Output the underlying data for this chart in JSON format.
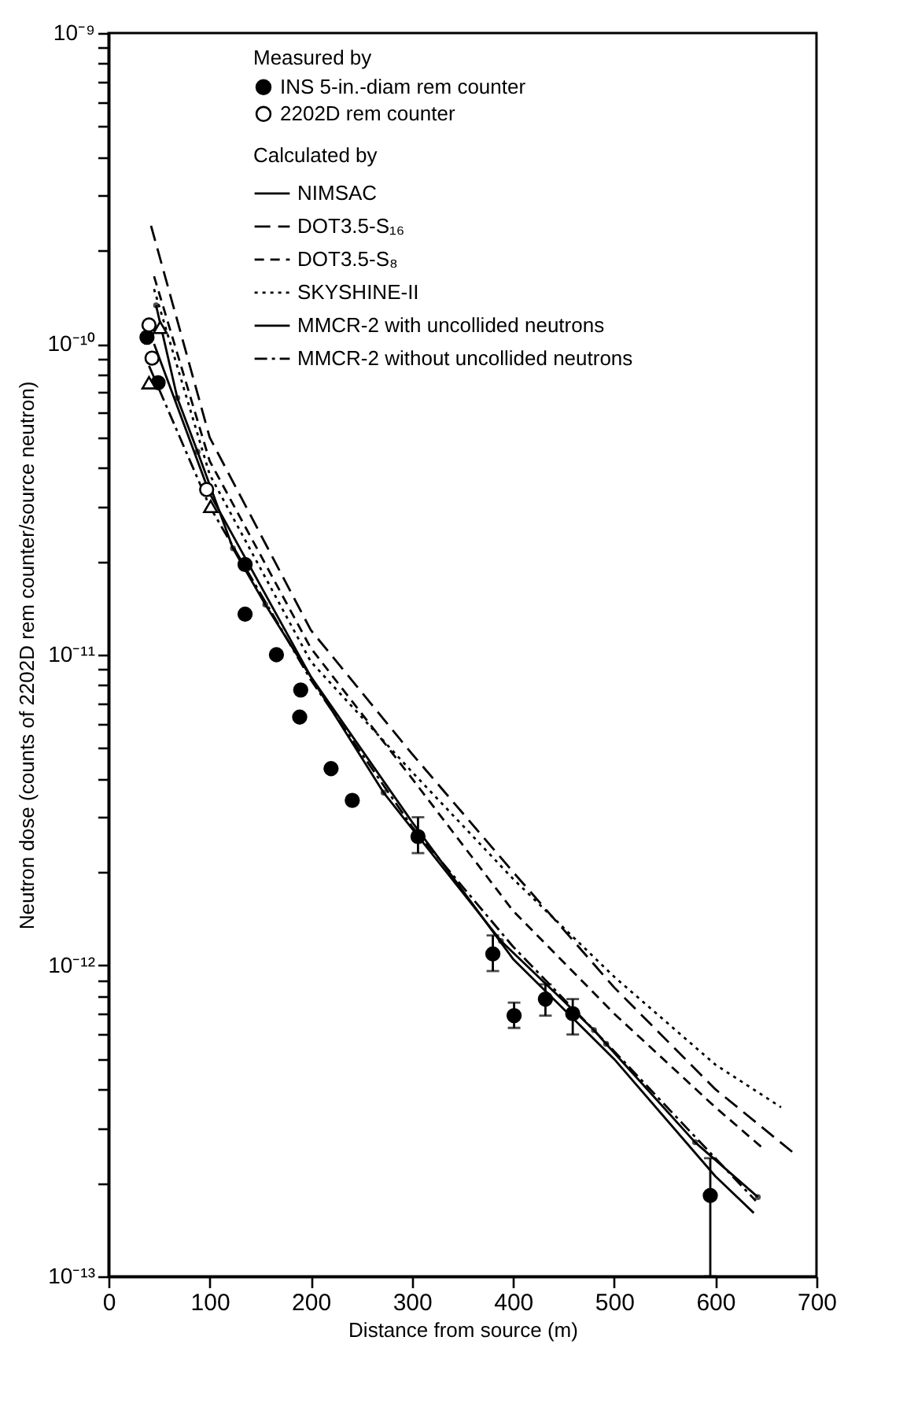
{
  "chart_data": {
    "type": "scatter",
    "xlabel": "Distance from source (m)",
    "ylabel": "Neutron dose (counts of 2202D rem counter/source neutron)",
    "legend_title": "Measured by",
    "annotations": [
      "Calculated by"
    ],
    "log": "y",
    "legend": "top right",
    "xlim": [
      0,
      700
    ],
    "xticks": [
      0,
      100,
      200,
      300,
      400,
      500,
      600,
      700
    ],
    "ylim": [
      1e-13,
      1e-09
    ],
    "yticks": [
      {
        "value": 1e-13,
        "label": "10⁻¹³"
      },
      {
        "value": 2e-13,
        "label": null
      },
      {
        "value": 3e-13,
        "label": null
      },
      {
        "value": 4e-13,
        "label": null
      },
      {
        "value": 5e-13,
        "label": null
      },
      {
        "value": 6e-13,
        "label": null
      },
      {
        "value": 7e-13,
        "label": null
      },
      {
        "value": 8e-13,
        "label": null
      },
      {
        "value": 9e-13,
        "label": null
      },
      {
        "value": 1e-12,
        "label": "10⁻¹²"
      },
      {
        "value": 2e-12,
        "label": null
      },
      {
        "value": 3e-12,
        "label": null
      },
      {
        "value": 4e-12,
        "label": null
      },
      {
        "value": 5e-12,
        "label": null
      },
      {
        "value": 6e-12,
        "label": null
      },
      {
        "value": 7e-12,
        "label": null
      },
      {
        "value": 8e-12,
        "label": null
      },
      {
        "value": 9e-12,
        "label": null
      },
      {
        "value": 1e-11,
        "label": "10⁻¹¹"
      },
      {
        "value": 2e-11,
        "label": null
      },
      {
        "value": 3e-11,
        "label": null
      },
      {
        "value": 4e-11,
        "label": null
      },
      {
        "value": 5e-11,
        "label": null
      },
      {
        "value": 6e-11,
        "label": null
      },
      {
        "value": 7e-11,
        "label": null
      },
      {
        "value": 8e-11,
        "label": null
      },
      {
        "value": 9e-11,
        "label": null
      },
      {
        "value": 1e-10,
        "label": "10⁻¹⁰"
      },
      {
        "value": 2e-10,
        "label": null
      },
      {
        "value": 3e-10,
        "label": null
      },
      {
        "value": 4e-10,
        "label": null
      },
      {
        "value": 5e-10,
        "label": null
      },
      {
        "value": 6e-10,
        "label": null
      },
      {
        "value": 7e-10,
        "label": null
      },
      {
        "value": 8e-10,
        "label": null
      },
      {
        "value": 9e-10,
        "label": null
      },
      {
        "value": 1e-09,
        "label": "10⁻⁹"
      }
    ],
    "series": [
      {
        "name": "INS 5-in.-diam rem counter",
        "type": "scatter",
        "marker": "circle",
        "color": "#000000",
        "x": [
          38,
          49,
          135,
          135,
          166,
          190,
          189,
          220,
          241,
          306,
          380,
          401,
          432,
          459,
          595
        ],
        "values": [
          1.05e-10,
          7.5e-11,
          1.95e-11,
          1.35e-11,
          1e-11,
          7.7e-12,
          6.3e-12,
          4.3e-12,
          3.4e-12,
          2.6e-12,
          1.09e-12,
          6.9e-13,
          7.8e-13,
          7e-13,
          1.82e-13
        ],
        "errors": [
          null,
          null,
          null,
          null,
          null,
          null,
          null,
          null,
          null,
          [
            2.3e-12,
            3e-12
          ],
          [
            9.6e-13,
            1.25e-12
          ],
          [
            6.3e-13,
            7.6e-13
          ],
          [
            6.9e-13,
            8.7e-13
          ],
          [
            6e-13,
            7.8e-13
          ],
          [
            1e-13,
            2.4e-13
          ]
        ]
      },
      {
        "name": "2202D rem counter",
        "type": "scatter",
        "marker": "circle",
        "color": "#ffffff",
        "x": [
          40,
          43,
          97
        ],
        "values": [
          1.15e-10,
          9e-11,
          3.4e-11
        ]
      },
      {
        "type": "scatter",
        "marker": "triangle",
        "color": "#ffffff",
        "x": [
          40,
          51,
          101
        ],
        "values": [
          7.5e-11,
          1.13e-10,
          3e-11
        ]
      },
      {
        "name": "NIMSAC",
        "type": "line",
        "line_style": "solid",
        "marker": "none",
        "color": "#000000",
        "x": [
          45,
          100,
          200,
          300,
          400,
          500,
          600,
          638
        ],
        "values": [
          1e-10,
          3.3e-11,
          8.5e-12,
          2.9e-12,
          1.05e-12,
          5e-13,
          2.1e-13,
          1.6e-13
        ]
      },
      {
        "name": "DOT3.5-S₁₆",
        "type": "line",
        "line_style": "dashed",
        "marker": "none",
        "color": "#000000",
        "x": [
          42,
          100,
          200,
          300,
          400,
          500,
          600,
          677
        ],
        "values": [
          2.4e-10,
          5e-11,
          1.2e-11,
          4.8e-12,
          2e-12,
          8.5e-13,
          4e-13,
          2.5e-13
        ]
      },
      {
        "name": "DOT3.5-S₈",
        "type": "line",
        "line_style": "dashed",
        "marker": "none",
        "color": "#000000",
        "x": [
          45,
          100,
          200,
          300,
          400,
          500,
          600,
          646
        ],
        "values": [
          1.65e-10,
          4.2e-11,
          1.05e-11,
          4e-12,
          1.5e-12,
          7e-13,
          3.5e-13,
          2.6e-13
        ]
      },
      {
        "name": "SKYSHINE-II",
        "type": "line",
        "line_style": "dotted",
        "marker": "none",
        "color": "#000000",
        "x": [
          45,
          100,
          200,
          300,
          400,
          500,
          600,
          665
        ],
        "values": [
          1.5e-10,
          3.8e-11,
          9.5e-12,
          4.2e-12,
          1.9e-12,
          9.2e-13,
          4.8e-13,
          3.5e-13
        ]
      },
      {
        "name": "MMCR-2 with uncollided neutrons",
        "type": "line",
        "line_style": "solid",
        "marker": "circle",
        "color": "#000000",
        "x": [
          47,
          68,
          88,
          123,
          155,
          272,
          388,
          480,
          492,
          580,
          642
        ],
        "values": [
          1.33e-10,
          6.7e-11,
          4.5e-11,
          2.2e-11,
          1.45e-11,
          3.6e-12,
          1.2e-12,
          6.2e-13,
          5.6e-13,
          2.7e-13,
          1.8e-13
        ]
      },
      {
        "name": "MMCR-2 without uncollided neutrons",
        "type": "line",
        "line_style": "dotted",
        "marker": "none",
        "color": "#000000",
        "x": [
          40,
          100,
          200,
          300,
          400,
          500,
          600,
          640
        ],
        "values": [
          8.5e-11,
          3e-11,
          8.3e-12,
          2.8e-12,
          1.15e-12,
          5.3e-13,
          2.4e-13,
          1.75e-13
        ]
      }
    ]
  }
}
